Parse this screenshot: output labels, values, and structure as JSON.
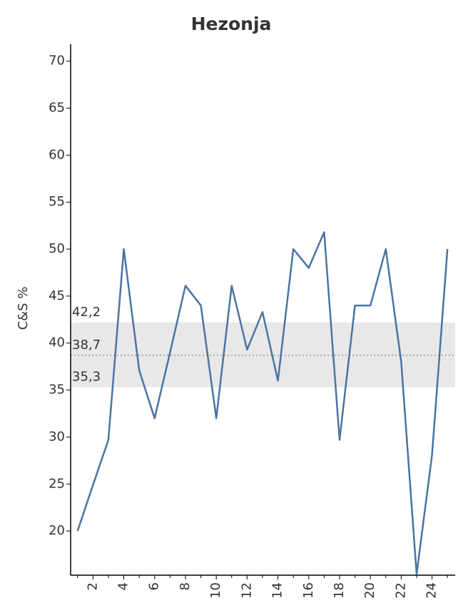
{
  "chart_data": {
    "type": "line",
    "title": "Hezonja",
    "y_label": "C&S %",
    "x": [
      1,
      2,
      3,
      4,
      5,
      6,
      7,
      8,
      9,
      10,
      11,
      12,
      13,
      14,
      15,
      16,
      17,
      18,
      19,
      20,
      21,
      22,
      23,
      24,
      25
    ],
    "series": [
      {
        "color": "#4a74a3",
        "values": [
          20,
          24.9,
          29.7,
          50,
          37.1,
          32,
          39,
          46.1,
          44,
          32,
          46.1,
          39.3,
          43.3,
          36,
          50,
          48,
          51.8,
          29.7,
          44,
          44,
          50,
          38,
          15.4,
          28.1,
          50
        ]
      }
    ],
    "xlim": [
      0.55,
      25.5
    ],
    "xticks": [
      2,
      4,
      6,
      8,
      10,
      12,
      14,
      16,
      18,
      20,
      22,
      24
    ],
    "xminorticks": [
      1,
      3,
      5,
      7,
      9,
      11,
      13,
      15,
      17,
      19,
      21,
      23,
      25
    ],
    "ylim": [
      15.3,
      71.8
    ],
    "yticks": [
      20,
      25,
      30,
      35,
      40,
      45,
      50,
      55,
      60,
      65,
      70
    ],
    "band": {
      "high": {
        "value": 42.2,
        "label": "42,2"
      },
      "mean": {
        "value": 38.7,
        "label": "38,7"
      },
      "low": {
        "value": 35.3,
        "label": "35,3"
      },
      "color": "#e8e8e8"
    }
  }
}
